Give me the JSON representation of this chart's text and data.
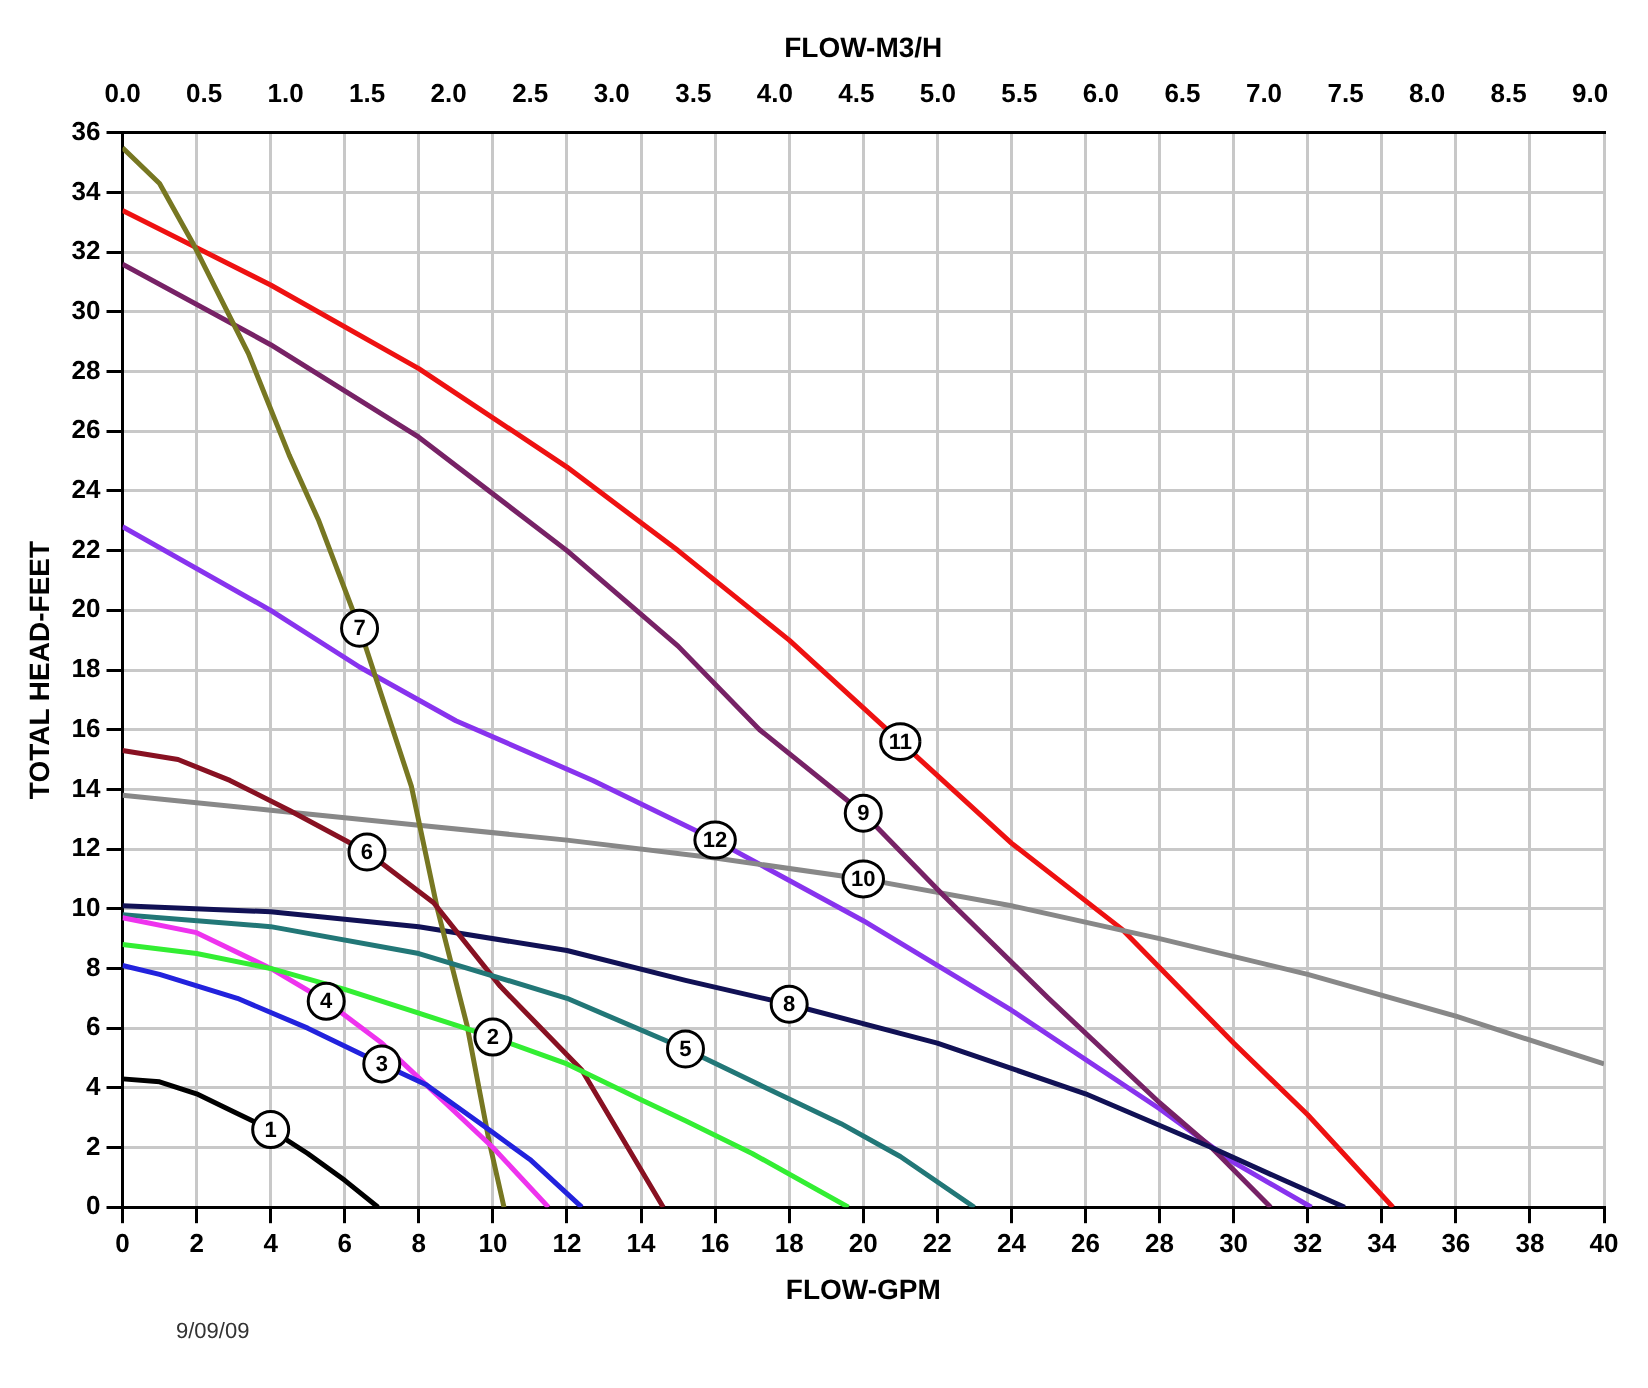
{
  "chart_data": {
    "type": "line",
    "xlabel": "FLOW-GPM",
    "ylabel": "TOTAL HEAD-FEET",
    "x2label": "FLOW-M3/H",
    "xlim": [
      0,
      40
    ],
    "xticks": [
      0,
      2,
      4,
      6,
      8,
      10,
      12,
      14,
      16,
      18,
      20,
      22,
      24,
      26,
      28,
      30,
      32,
      34,
      36,
      38,
      40
    ],
    "x2lim": [
      0,
      9.085
    ],
    "x2ticks": [
      {
        "value": 0,
        "label": "0.0"
      },
      0.5,
      {
        "value": 1,
        "label": "1.0"
      },
      1.5,
      {
        "value": 2,
        "label": "2.0"
      },
      2.5,
      {
        "value": 3,
        "label": "3.0"
      },
      3.5,
      {
        "value": 4,
        "label": "4.0"
      },
      4.5,
      {
        "value": 5,
        "label": "5.0"
      },
      5.5,
      {
        "value": 6,
        "label": "6.0"
      },
      6.5,
      {
        "value": 7,
        "label": "7.0"
      },
      7.5,
      {
        "value": 8,
        "label": "8.0"
      },
      8.5,
      {
        "value": 9,
        "label": "9.0"
      }
    ],
    "ylim": [
      0,
      36
    ],
    "yticks": [
      0,
      2,
      4,
      6,
      8,
      10,
      12,
      14,
      16,
      18,
      20,
      22,
      24,
      26,
      28,
      30,
      32,
      34,
      36
    ],
    "grid": true,
    "legend": false,
    "marker": "none",
    "line_style": "solid",
    "annotations": [
      "9/09/09"
    ],
    "series": [
      {
        "name": "1",
        "color": "#000000",
        "x": [
          0,
          1,
          2,
          3,
          4,
          5,
          6,
          6.9
        ],
        "values": [
          4.3,
          4.2,
          3.8,
          3.2,
          2.6,
          1.8,
          0.9,
          0
        ]
      },
      {
        "name": "2",
        "color": "#33ee33",
        "x": [
          0,
          2,
          4,
          6,
          8,
          10,
          12,
          14,
          15.2,
          17,
          19.6
        ],
        "values": [
          8.8,
          8.5,
          8.0,
          7.3,
          6.5,
          5.7,
          4.8,
          3.6,
          2.9,
          1.8,
          0
        ]
      },
      {
        "name": "3",
        "color": "#2222dd",
        "x": [
          0,
          1,
          3.1,
          5,
          7,
          8.2,
          10,
          11,
          12.4
        ],
        "values": [
          8.1,
          7.8,
          7.0,
          6.0,
          4.8,
          4.1,
          2.5,
          1.6,
          0
        ]
      },
      {
        "name": "4",
        "color": "#ee33ee",
        "x": [
          0,
          2,
          4,
          5.5,
          7,
          8.2,
          10,
          11.5
        ],
        "values": [
          9.7,
          9.2,
          8.0,
          6.9,
          5.5,
          4.1,
          2.0,
          0
        ]
      },
      {
        "name": "5",
        "color": "#227777",
        "x": [
          0,
          4,
          8,
          12,
          15.2,
          17.2,
          19.4,
          21,
          23
        ],
        "values": [
          9.8,
          9.4,
          8.5,
          7.0,
          5.3,
          4.1,
          2.8,
          1.7,
          0
        ]
      },
      {
        "name": "6",
        "color": "#881122",
        "x": [
          0,
          1.5,
          2.9,
          4.5,
          6.6,
          8.4,
          10.2,
          12.4,
          14.6
        ],
        "values": [
          15.3,
          15.0,
          14.3,
          13.3,
          11.9,
          10.2,
          7.4,
          4.6,
          0
        ]
      },
      {
        "name": "7",
        "color": "#777722",
        "x": [
          0,
          1,
          1.9,
          3.4,
          4.5,
          5.3,
          6.4,
          7.8,
          8.5,
          9.3,
          9.9,
          10.3
        ],
        "values": [
          35.5,
          34.3,
          32.3,
          28.6,
          25.2,
          23.0,
          19.4,
          14.1,
          10.0,
          6.1,
          2.2,
          0
        ]
      },
      {
        "name": "8",
        "color": "#111155",
        "x": [
          0,
          4,
          8,
          12,
          15.2,
          18,
          22,
          26,
          29.4,
          31,
          33
        ],
        "values": [
          10.1,
          9.9,
          9.4,
          8.6,
          7.6,
          6.8,
          5.5,
          3.8,
          2.0,
          1.1,
          0
        ]
      },
      {
        "name": "9",
        "color": "#772266",
        "x": [
          0,
          4,
          8,
          12,
          15,
          17.2,
          20,
          22.2,
          25,
          28,
          29.4,
          31
        ],
        "values": [
          31.6,
          28.9,
          25.8,
          22.0,
          18.8,
          16.0,
          13.2,
          10.4,
          7.0,
          3.5,
          2.0,
          0
        ]
      },
      {
        "name": "10",
        "color": "#888888",
        "x": [
          0,
          4,
          8,
          12,
          16,
          20,
          24,
          28,
          32,
          36,
          40
        ],
        "values": [
          13.8,
          13.3,
          12.8,
          12.3,
          11.7,
          11.0,
          10.1,
          9.0,
          7.8,
          6.4,
          4.8
        ]
      },
      {
        "name": "11",
        "color": "#ee1111",
        "x": [
          0,
          4,
          8,
          12,
          15,
          18,
          21,
          24,
          27,
          30,
          32,
          34.3
        ],
        "values": [
          33.4,
          30.9,
          28.1,
          24.8,
          22.0,
          19.0,
          15.6,
          12.2,
          9.3,
          5.5,
          3.1,
          0
        ]
      },
      {
        "name": "12",
        "color": "#8833ee",
        "x": [
          0,
          4,
          6.4,
          9,
          12.7,
          16,
          20,
          24,
          28,
          30,
          32.1
        ],
        "values": [
          22.8,
          20.0,
          18.1,
          16.3,
          14.3,
          12.3,
          9.6,
          6.6,
          3.3,
          1.5,
          0
        ]
      }
    ]
  }
}
